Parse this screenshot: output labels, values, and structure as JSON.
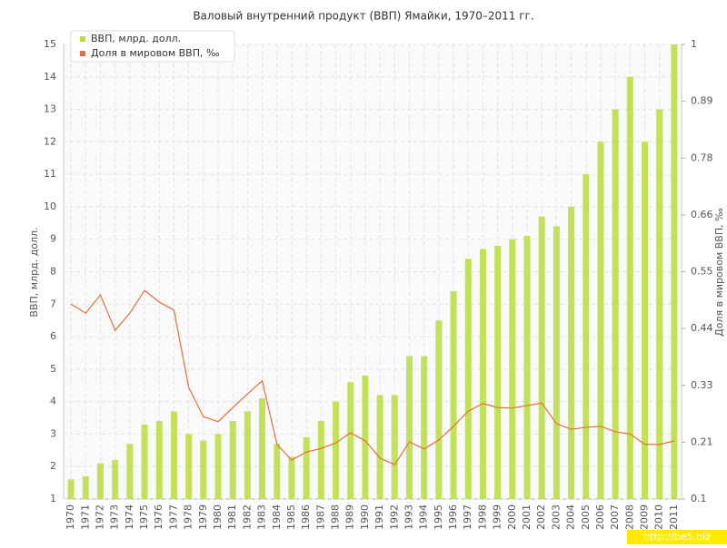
{
  "chart_data": {
    "type": "bar-line",
    "title": "Валовый внутренний продукт (ВВП) Ямайки, 1970–2011 гг.",
    "y_label": "ВВП, млрд. долл.",
    "y2_label": "Доля в мировом ВВП, ‰",
    "watermark": "http://be5.biz",
    "categories": [
      "1970",
      "1971",
      "1972",
      "1973",
      "1974",
      "1975",
      "1976",
      "1977",
      "1978",
      "1979",
      "1980",
      "1981",
      "1982",
      "1983",
      "1984",
      "1985",
      "1986",
      "1987",
      "1988",
      "1989",
      "1990",
      "1991",
      "1992",
      "1993",
      "1994",
      "1995",
      "1996",
      "1997",
      "1998",
      "1999",
      "2000",
      "2001",
      "2002",
      "2003",
      "2004",
      "2005",
      "2006",
      "2007",
      "2008",
      "2009",
      "2010",
      "2011"
    ],
    "series": [
      {
        "name": "ВВП, млрд. долл.",
        "type": "bar",
        "color": "#b8dc3c",
        "values": [
          1.6,
          1.7,
          2.1,
          2.2,
          2.7,
          3.3,
          3.4,
          3.7,
          3.0,
          2.8,
          3.0,
          3.4,
          3.7,
          4.1,
          2.7,
          2.3,
          2.9,
          3.4,
          4.0,
          4.6,
          4.8,
          4.2,
          4.2,
          5.4,
          5.4,
          6.5,
          7.4,
          8.4,
          8.7,
          8.8,
          9.0,
          9.1,
          9.7,
          9.4,
          10.0,
          11.0,
          12.0,
          13.0,
          14.0,
          12.0,
          13.0,
          15.0
        ]
      },
      {
        "name": "Доля в мировом ВВП, ‰",
        "type": "line",
        "axis": "y2",
        "color": "#e2703c",
        "values": [
          0.486,
          0.468,
          0.504,
          0.434,
          0.468,
          0.513,
          0.49,
          0.474,
          0.321,
          0.263,
          0.253,
          0.281,
          0.308,
          0.334,
          0.208,
          0.177,
          0.193,
          0.2,
          0.211,
          0.231,
          0.215,
          0.181,
          0.168,
          0.213,
          0.199,
          0.217,
          0.244,
          0.274,
          0.289,
          0.281,
          0.28,
          0.285,
          0.29,
          0.249,
          0.238,
          0.242,
          0.244,
          0.233,
          0.229,
          0.208,
          0.208,
          0.215
        ]
      }
    ],
    "ylim": [
      1,
      15
    ],
    "yticks": [
      1,
      2,
      3,
      4,
      5,
      6,
      7,
      8,
      9,
      10,
      11,
      12,
      13,
      14,
      15
    ],
    "y2lim": [
      0.1,
      1
    ],
    "y2ticks": [
      0.1,
      {
        "value": 0.2125,
        "label": "0.21"
      },
      {
        "value": 0.325,
        "label": "0.33"
      },
      {
        "value": 0.4375,
        "label": "0.44"
      },
      0.55,
      {
        "value": 0.6625,
        "label": "0.66"
      },
      {
        "value": 0.775,
        "label": "0.78"
      },
      {
        "value": 0.8875,
        "label": "0.89"
      },
      1
    ],
    "grid": true,
    "legend": "top-left"
  }
}
